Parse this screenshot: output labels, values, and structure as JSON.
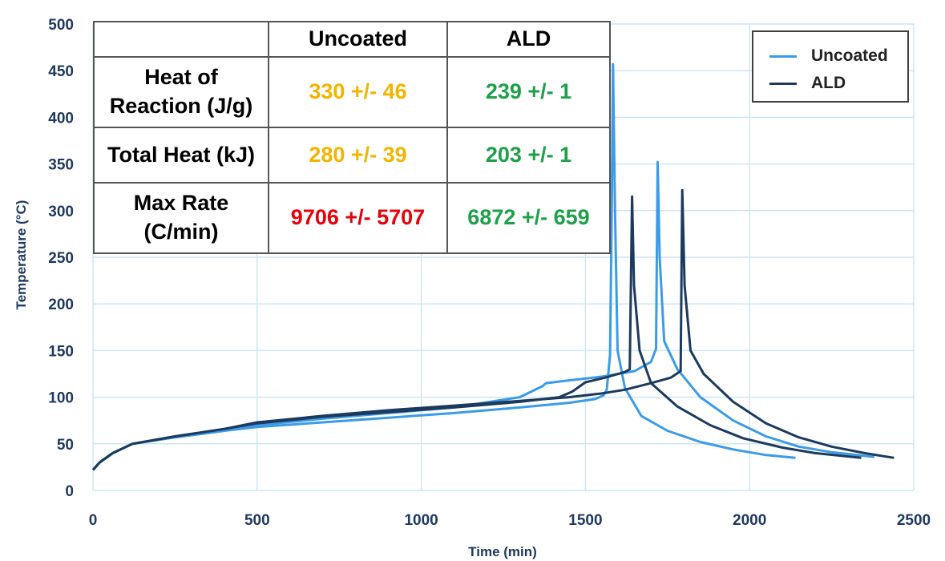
{
  "chart_data": {
    "type": "line",
    "title": "",
    "xlabel": "Time (min)",
    "ylabel": "Temperature (°C)",
    "xlim": [
      0,
      2500
    ],
    "ylim": [
      0,
      500
    ],
    "xticks": [
      0,
      500,
      1000,
      1500,
      2000,
      2500
    ],
    "yticks": [
      0,
      50,
      100,
      150,
      200,
      250,
      300,
      350,
      400,
      450,
      500
    ],
    "grid": true,
    "legend_position": "top-right",
    "legend": [
      {
        "label": "Uncoated",
        "color": "#3b9be8"
      },
      {
        "label": "ALD",
        "color": "#1c3a5e"
      }
    ],
    "series": [
      {
        "name": "Uncoated",
        "color": "#3b9be8",
        "points": [
          [
            0,
            22
          ],
          [
            20,
            30
          ],
          [
            60,
            40
          ],
          [
            120,
            50
          ],
          [
            250,
            57
          ],
          [
            400,
            64
          ],
          [
            500,
            68
          ],
          [
            700,
            73
          ],
          [
            900,
            78
          ],
          [
            1100,
            83
          ],
          [
            1300,
            89
          ],
          [
            1450,
            94
          ],
          [
            1530,
            98
          ],
          [
            1555,
            102
          ],
          [
            1565,
            108
          ],
          [
            1575,
            145
          ],
          [
            1580,
            300
          ],
          [
            1584,
            457
          ],
          [
            1590,
            300
          ],
          [
            1598,
            150
          ],
          [
            1620,
            110
          ],
          [
            1670,
            80
          ],
          [
            1750,
            64
          ],
          [
            1850,
            52
          ],
          [
            1950,
            44
          ],
          [
            2050,
            38
          ],
          [
            2140,
            35
          ]
        ]
      },
      {
        "name": "Uncoated",
        "color": "#3b9be8",
        "points": [
          [
            0,
            22
          ],
          [
            20,
            30
          ],
          [
            60,
            40
          ],
          [
            120,
            50
          ],
          [
            250,
            57
          ],
          [
            400,
            64
          ],
          [
            500,
            70
          ],
          [
            700,
            77
          ],
          [
            900,
            83
          ],
          [
            1100,
            89
          ],
          [
            1300,
            100
          ],
          [
            1370,
            112
          ],
          [
            1380,
            115
          ],
          [
            1450,
            118
          ],
          [
            1550,
            122
          ],
          [
            1650,
            128
          ],
          [
            1700,
            138
          ],
          [
            1715,
            152
          ],
          [
            1720,
            352
          ],
          [
            1726,
            250
          ],
          [
            1740,
            160
          ],
          [
            1780,
            130
          ],
          [
            1850,
            100
          ],
          [
            1950,
            75
          ],
          [
            2050,
            58
          ],
          [
            2150,
            47
          ],
          [
            2250,
            41
          ],
          [
            2380,
            36
          ]
        ]
      },
      {
        "name": "ALD",
        "color": "#1c3a5e",
        "points": [
          [
            0,
            22
          ],
          [
            20,
            30
          ],
          [
            60,
            40
          ],
          [
            120,
            50
          ],
          [
            250,
            58
          ],
          [
            400,
            66
          ],
          [
            500,
            72
          ],
          [
            700,
            79
          ],
          [
            900,
            84
          ],
          [
            1100,
            89
          ],
          [
            1300,
            95
          ],
          [
            1420,
            100
          ],
          [
            1460,
            106
          ],
          [
            1500,
            116
          ],
          [
            1560,
            121
          ],
          [
            1620,
            127
          ],
          [
            1635,
            130
          ],
          [
            1642,
            315
          ],
          [
            1648,
            220
          ],
          [
            1665,
            150
          ],
          [
            1700,
            115
          ],
          [
            1780,
            90
          ],
          [
            1880,
            70
          ],
          [
            1980,
            56
          ],
          [
            2100,
            46
          ],
          [
            2200,
            40
          ],
          [
            2340,
            35
          ]
        ]
      },
      {
        "name": "ALD",
        "color": "#1c3a5e",
        "points": [
          [
            0,
            22
          ],
          [
            20,
            30
          ],
          [
            60,
            40
          ],
          [
            120,
            50
          ],
          [
            250,
            58
          ],
          [
            400,
            66
          ],
          [
            500,
            73
          ],
          [
            700,
            80
          ],
          [
            900,
            86
          ],
          [
            1100,
            91
          ],
          [
            1300,
            96
          ],
          [
            1450,
            100
          ],
          [
            1550,
            104
          ],
          [
            1620,
            108
          ],
          [
            1700,
            115
          ],
          [
            1760,
            121
          ],
          [
            1790,
            128
          ],
          [
            1795,
            322
          ],
          [
            1802,
            220
          ],
          [
            1820,
            150
          ],
          [
            1860,
            125
          ],
          [
            1950,
            95
          ],
          [
            2050,
            72
          ],
          [
            2150,
            57
          ],
          [
            2250,
            47
          ],
          [
            2350,
            40
          ],
          [
            2440,
            35
          ]
        ]
      }
    ],
    "table": {
      "headers": [
        "",
        "Uncoated",
        "ALD"
      ],
      "rows": [
        {
          "label": "Heat of Reaction (J/g)",
          "uncoated": "330 +/- 46",
          "ald": "239 +/- 1"
        },
        {
          "label": "Total Heat (kJ)",
          "uncoated": "280 +/- 39",
          "ald": "203 +/- 1"
        },
        {
          "label": "Max Rate (C/min)",
          "uncoated": "9706 +/- 5707",
          "ald": "6872 +/- 659"
        }
      ]
    }
  }
}
